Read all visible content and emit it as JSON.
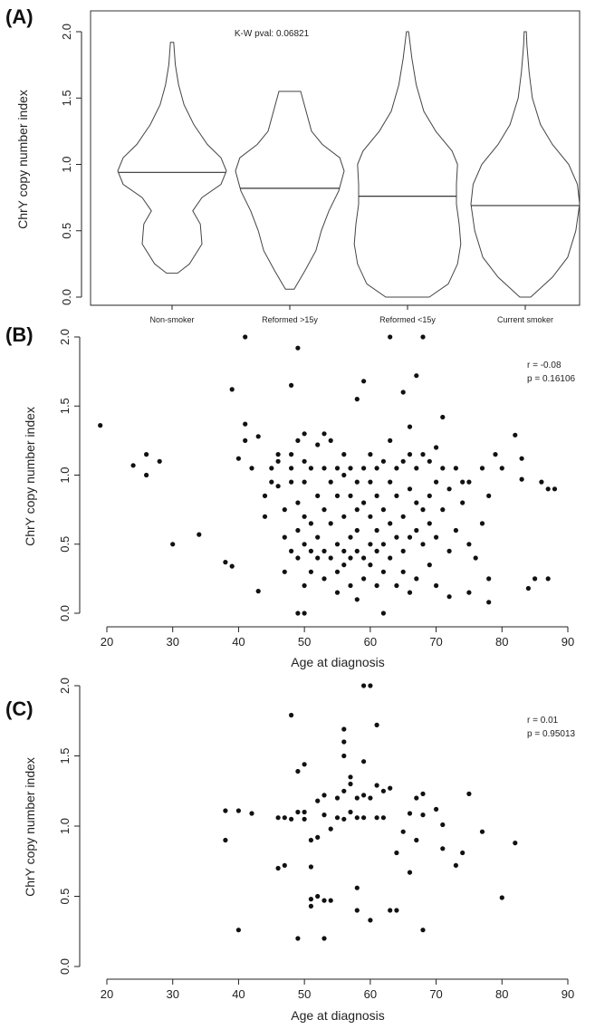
{
  "chart_data": [
    {
      "panel": "(A)",
      "type": "violin",
      "annotation": "K-W pval: 0.06821",
      "ylabel": "ChrY copy number index",
      "ylim": [
        0,
        2
      ],
      "yticks": [
        "0.0",
        "0.5",
        "1.0",
        "1.5",
        "2.0"
      ],
      "categories": [
        "Non-smoker",
        "Reformed >15y",
        "Reformed <15y",
        "Current smoker"
      ],
      "series": [
        {
          "min": 0.18,
          "max": 1.92,
          "median": 0.94,
          "profile": [
            [
              0.18,
              0.1
            ],
            [
              0.25,
              0.32
            ],
            [
              0.4,
              0.55
            ],
            [
              0.55,
              0.52
            ],
            [
              0.65,
              0.38
            ],
            [
              0.75,
              0.55
            ],
            [
              0.85,
              0.9
            ],
            [
              0.95,
              1.0
            ],
            [
              1.05,
              0.9
            ],
            [
              1.15,
              0.65
            ],
            [
              1.3,
              0.4
            ],
            [
              1.45,
              0.22
            ],
            [
              1.6,
              0.12
            ],
            [
              1.75,
              0.06
            ],
            [
              1.92,
              0.03
            ]
          ]
        },
        {
          "min": 0.06,
          "max": 1.55,
          "median": 0.82,
          "profile": [
            [
              0.06,
              0.08
            ],
            [
              0.2,
              0.28
            ],
            [
              0.35,
              0.48
            ],
            [
              0.5,
              0.58
            ],
            [
              0.65,
              0.72
            ],
            [
              0.8,
              0.9
            ],
            [
              0.95,
              1.0
            ],
            [
              1.05,
              0.92
            ],
            [
              1.15,
              0.6
            ],
            [
              1.25,
              0.4
            ],
            [
              1.4,
              0.3
            ],
            [
              1.55,
              0.2
            ]
          ]
        },
        {
          "min": 0.0,
          "max": 2.0,
          "median": 0.76,
          "profile": [
            [
              0.0,
              0.4
            ],
            [
              0.1,
              0.75
            ],
            [
              0.25,
              0.92
            ],
            [
              0.4,
              0.98
            ],
            [
              0.55,
              0.95
            ],
            [
              0.7,
              0.9
            ],
            [
              0.85,
              0.9
            ],
            [
              1.0,
              0.92
            ],
            [
              1.1,
              0.82
            ],
            [
              1.25,
              0.52
            ],
            [
              1.4,
              0.3
            ],
            [
              1.6,
              0.16
            ],
            [
              1.8,
              0.08
            ],
            [
              2.0,
              0.02
            ]
          ]
        },
        {
          "min": 0.0,
          "max": 2.0,
          "median": 0.69,
          "profile": [
            [
              0.0,
              0.1
            ],
            [
              0.15,
              0.5
            ],
            [
              0.3,
              0.78
            ],
            [
              0.5,
              0.93
            ],
            [
              0.7,
              1.0
            ],
            [
              0.85,
              0.96
            ],
            [
              1.0,
              0.8
            ],
            [
              1.15,
              0.5
            ],
            [
              1.3,
              0.28
            ],
            [
              1.5,
              0.13
            ],
            [
              1.7,
              0.07
            ],
            [
              1.9,
              0.03
            ],
            [
              2.0,
              0.02
            ]
          ]
        }
      ]
    },
    {
      "panel": "(B)",
      "type": "scatter",
      "xlabel": "Age at diagnosis",
      "ylabel": "ChrY copy number index",
      "xlim": [
        20,
        90
      ],
      "ylim": [
        0,
        2
      ],
      "xticks": [
        "20",
        "30",
        "40",
        "50",
        "60",
        "70",
        "80",
        "90"
      ],
      "yticks": [
        "0.0",
        "0.5",
        "1.0",
        "1.5",
        "2.0"
      ],
      "annotation_r": "r = -0.08",
      "annotation_p": "p = 0.16106",
      "points": [
        [
          19,
          1.36
        ],
        [
          24,
          1.07
        ],
        [
          26,
          1.15
        ],
        [
          26,
          1.0
        ],
        [
          28,
          1.1
        ],
        [
          30,
          0.5
        ],
        [
          34,
          0.57
        ],
        [
          38,
          0.37
        ],
        [
          39,
          0.34
        ],
        [
          39,
          1.62
        ],
        [
          40,
          1.12
        ],
        [
          41,
          2.0
        ],
        [
          41,
          1.37
        ],
        [
          41,
          1.25
        ],
        [
          42,
          1.05
        ],
        [
          43,
          0.16
        ],
        [
          43,
          1.28
        ],
        [
          44,
          0.7
        ],
        [
          44,
          0.85
        ],
        [
          45,
          0.95
        ],
        [
          45,
          1.05
        ],
        [
          46,
          1.1
        ],
        [
          46,
          0.92
        ],
        [
          46,
          1.15
        ],
        [
          47,
          0.55
        ],
        [
          47,
          0.3
        ],
        [
          47,
          0.75
        ],
        [
          48,
          1.65
        ],
        [
          48,
          1.05
        ],
        [
          48,
          0.45
        ],
        [
          48,
          0.95
        ],
        [
          48,
          1.15
        ],
        [
          49,
          1.92
        ],
        [
          49,
          0.0
        ],
        [
          49,
          0.6
        ],
        [
          49,
          0.8
        ],
        [
          49,
          0.4
        ],
        [
          49,
          1.25
        ],
        [
          50,
          0.0
        ],
        [
          50,
          1.3
        ],
        [
          50,
          1.1
        ],
        [
          50,
          0.7
        ],
        [
          50,
          0.5
        ],
        [
          50,
          0.2
        ],
        [
          50,
          0.95
        ],
        [
          51,
          0.3
        ],
        [
          51,
          0.45
        ],
        [
          51,
          1.05
        ],
        [
          51,
          0.65
        ],
        [
          52,
          0.4
        ],
        [
          52,
          0.85
        ],
        [
          52,
          1.22
        ],
        [
          52,
          0.55
        ],
        [
          53,
          0.25
        ],
        [
          53,
          0.75
        ],
        [
          53,
          1.3
        ],
        [
          53,
          0.45
        ],
        [
          53,
          1.05
        ],
        [
          54,
          0.4
        ],
        [
          54,
          0.95
        ],
        [
          54,
          1.25
        ],
        [
          54,
          0.65
        ],
        [
          55,
          0.5
        ],
        [
          55,
          0.85
        ],
        [
          55,
          1.05
        ],
        [
          55,
          0.3
        ],
        [
          55,
          0.15
        ],
        [
          56,
          0.45
        ],
        [
          56,
          0.7
        ],
        [
          56,
          1.0
        ],
        [
          56,
          0.35
        ],
        [
          56,
          1.15
        ],
        [
          57,
          0.4
        ],
        [
          57,
          0.85
        ],
        [
          57,
          0.55
        ],
        [
          57,
          1.05
        ],
        [
          57,
          0.2
        ],
        [
          58,
          1.55
        ],
        [
          58,
          0.75
        ],
        [
          58,
          0.45
        ],
        [
          58,
          0.1
        ],
        [
          58,
          0.95
        ],
        [
          58,
          0.6
        ],
        [
          59,
          1.68
        ],
        [
          59,
          1.05
        ],
        [
          59,
          0.4
        ],
        [
          59,
          0.8
        ],
        [
          59,
          0.25
        ],
        [
          60,
          0.5
        ],
        [
          60,
          1.15
        ],
        [
          60,
          0.7
        ],
        [
          60,
          0.35
        ],
        [
          60,
          0.95
        ],
        [
          61,
          0.6
        ],
        [
          61,
          1.05
        ],
        [
          61,
          0.45
        ],
        [
          61,
          0.2
        ],
        [
          61,
          0.85
        ],
        [
          62,
          0.0
        ],
        [
          62,
          0.5
        ],
        [
          62,
          0.75
        ],
        [
          62,
          1.1
        ],
        [
          62,
          0.3
        ],
        [
          63,
          2.0
        ],
        [
          63,
          0.65
        ],
        [
          63,
          0.95
        ],
        [
          63,
          0.4
        ],
        [
          63,
          1.25
        ],
        [
          64,
          0.55
        ],
        [
          64,
          0.85
        ],
        [
          64,
          1.05
        ],
        [
          64,
          0.2
        ],
        [
          65,
          1.6
        ],
        [
          65,
          0.45
        ],
        [
          65,
          0.7
        ],
        [
          65,
          1.1
        ],
        [
          65,
          0.3
        ],
        [
          66,
          1.35
        ],
        [
          66,
          0.55
        ],
        [
          66,
          0.9
        ],
        [
          66,
          1.15
        ],
        [
          66,
          0.15
        ],
        [
          67,
          1.72
        ],
        [
          67,
          0.6
        ],
        [
          67,
          0.8
        ],
        [
          67,
          1.05
        ],
        [
          67,
          0.25
        ],
        [
          68,
          2.0
        ],
        [
          68,
          0.75
        ],
        [
          68,
          1.15
        ],
        [
          68,
          0.5
        ],
        [
          69,
          0.85
        ],
        [
          69,
          1.1
        ],
        [
          69,
          0.65
        ],
        [
          69,
          0.35
        ],
        [
          70,
          1.2
        ],
        [
          70,
          0.95
        ],
        [
          70,
          0.55
        ],
        [
          70,
          0.2
        ],
        [
          71,
          1.42
        ],
        [
          71,
          1.05
        ],
        [
          71,
          0.75
        ],
        [
          72,
          0.9
        ],
        [
          72,
          0.45
        ],
        [
          72,
          0.12
        ],
        [
          73,
          1.05
        ],
        [
          73,
          0.6
        ],
        [
          74,
          0.95
        ],
        [
          74,
          0.8
        ],
        [
          75,
          0.5
        ],
        [
          75,
          0.15
        ],
        [
          75,
          0.95
        ],
        [
          76,
          0.4
        ],
        [
          77,
          0.65
        ],
        [
          77,
          1.05
        ],
        [
          78,
          0.25
        ],
        [
          78,
          0.85
        ],
        [
          78,
          0.08
        ],
        [
          79,
          1.15
        ],
        [
          80,
          1.05
        ],
        [
          82,
          1.29
        ],
        [
          83,
          1.12
        ],
        [
          83,
          0.97
        ],
        [
          84,
          0.18
        ],
        [
          85,
          0.25
        ],
        [
          86,
          0.95
        ],
        [
          87,
          0.25
        ],
        [
          87,
          0.9
        ],
        [
          88,
          0.9
        ]
      ]
    },
    {
      "panel": "(C)",
      "type": "scatter",
      "xlabel": "Age at diagnosis",
      "ylabel": "ChrY copy number index",
      "xlim": [
        20,
        90
      ],
      "ylim": [
        0,
        2
      ],
      "xticks": [
        "20",
        "30",
        "40",
        "50",
        "60",
        "70",
        "80",
        "90"
      ],
      "yticks": [
        "0.0",
        "0.5",
        "1.0",
        "1.5",
        "2.0"
      ],
      "annotation_r": "r = 0.01",
      "annotation_p": "p = 0.95013",
      "points": [
        [
          38,
          1.11
        ],
        [
          38,
          0.9
        ],
        [
          40,
          1.11
        ],
        [
          40,
          0.26
        ],
        [
          42,
          1.09
        ],
        [
          46,
          1.06
        ],
        [
          46,
          0.7
        ],
        [
          47,
          1.06
        ],
        [
          47,
          0.72
        ],
        [
          48,
          1.79
        ],
        [
          48,
          1.05
        ],
        [
          49,
          1.39
        ],
        [
          49,
          1.1
        ],
        [
          49,
          0.2
        ],
        [
          50,
          1.44
        ],
        [
          50,
          1.05
        ],
        [
          50,
          1.1
        ],
        [
          51,
          0.9
        ],
        [
          51,
          0.48
        ],
        [
          51,
          0.43
        ],
        [
          51,
          0.71
        ],
        [
          52,
          0.5
        ],
        [
          52,
          1.18
        ],
        [
          52,
          0.92
        ],
        [
          53,
          1.22
        ],
        [
          53,
          0.47
        ],
        [
          53,
          0.2
        ],
        [
          53,
          1.08
        ],
        [
          54,
          0.98
        ],
        [
          54,
          0.47
        ],
        [
          55,
          1.06
        ],
        [
          55,
          1.2
        ],
        [
          56,
          1.69
        ],
        [
          56,
          1.6
        ],
        [
          56,
          1.5
        ],
        [
          56,
          1.25
        ],
        [
          56,
          1.05
        ],
        [
          57,
          1.35
        ],
        [
          57,
          1.3
        ],
        [
          57,
          1.1
        ],
        [
          58,
          1.06
        ],
        [
          58,
          1.2
        ],
        [
          58,
          0.56
        ],
        [
          58,
          0.4
        ],
        [
          59,
          2.0
        ],
        [
          59,
          1.46
        ],
        [
          59,
          1.22
        ],
        [
          59,
          1.06
        ],
        [
          60,
          2.0
        ],
        [
          60,
          1.2
        ],
        [
          60,
          0.33
        ],
        [
          61,
          1.72
        ],
        [
          61,
          1.29
        ],
        [
          61,
          1.06
        ],
        [
          62,
          1.25
        ],
        [
          62,
          1.06
        ],
        [
          63,
          1.27
        ],
        [
          63,
          0.4
        ],
        [
          64,
          0.4
        ],
        [
          64,
          0.81
        ],
        [
          65,
          0.96
        ],
        [
          66,
          0.67
        ],
        [
          66,
          1.09
        ],
        [
          67,
          1.2
        ],
        [
          67,
          0.9
        ],
        [
          68,
          1.23
        ],
        [
          68,
          1.08
        ],
        [
          68,
          0.26
        ],
        [
          70,
          1.12
        ],
        [
          71,
          0.84
        ],
        [
          71,
          1.01
        ],
        [
          73,
          0.72
        ],
        [
          74,
          0.81
        ],
        [
          75,
          1.23
        ],
        [
          77,
          0.96
        ],
        [
          80,
          0.49
        ],
        [
          82,
          0.88
        ]
      ]
    }
  ]
}
